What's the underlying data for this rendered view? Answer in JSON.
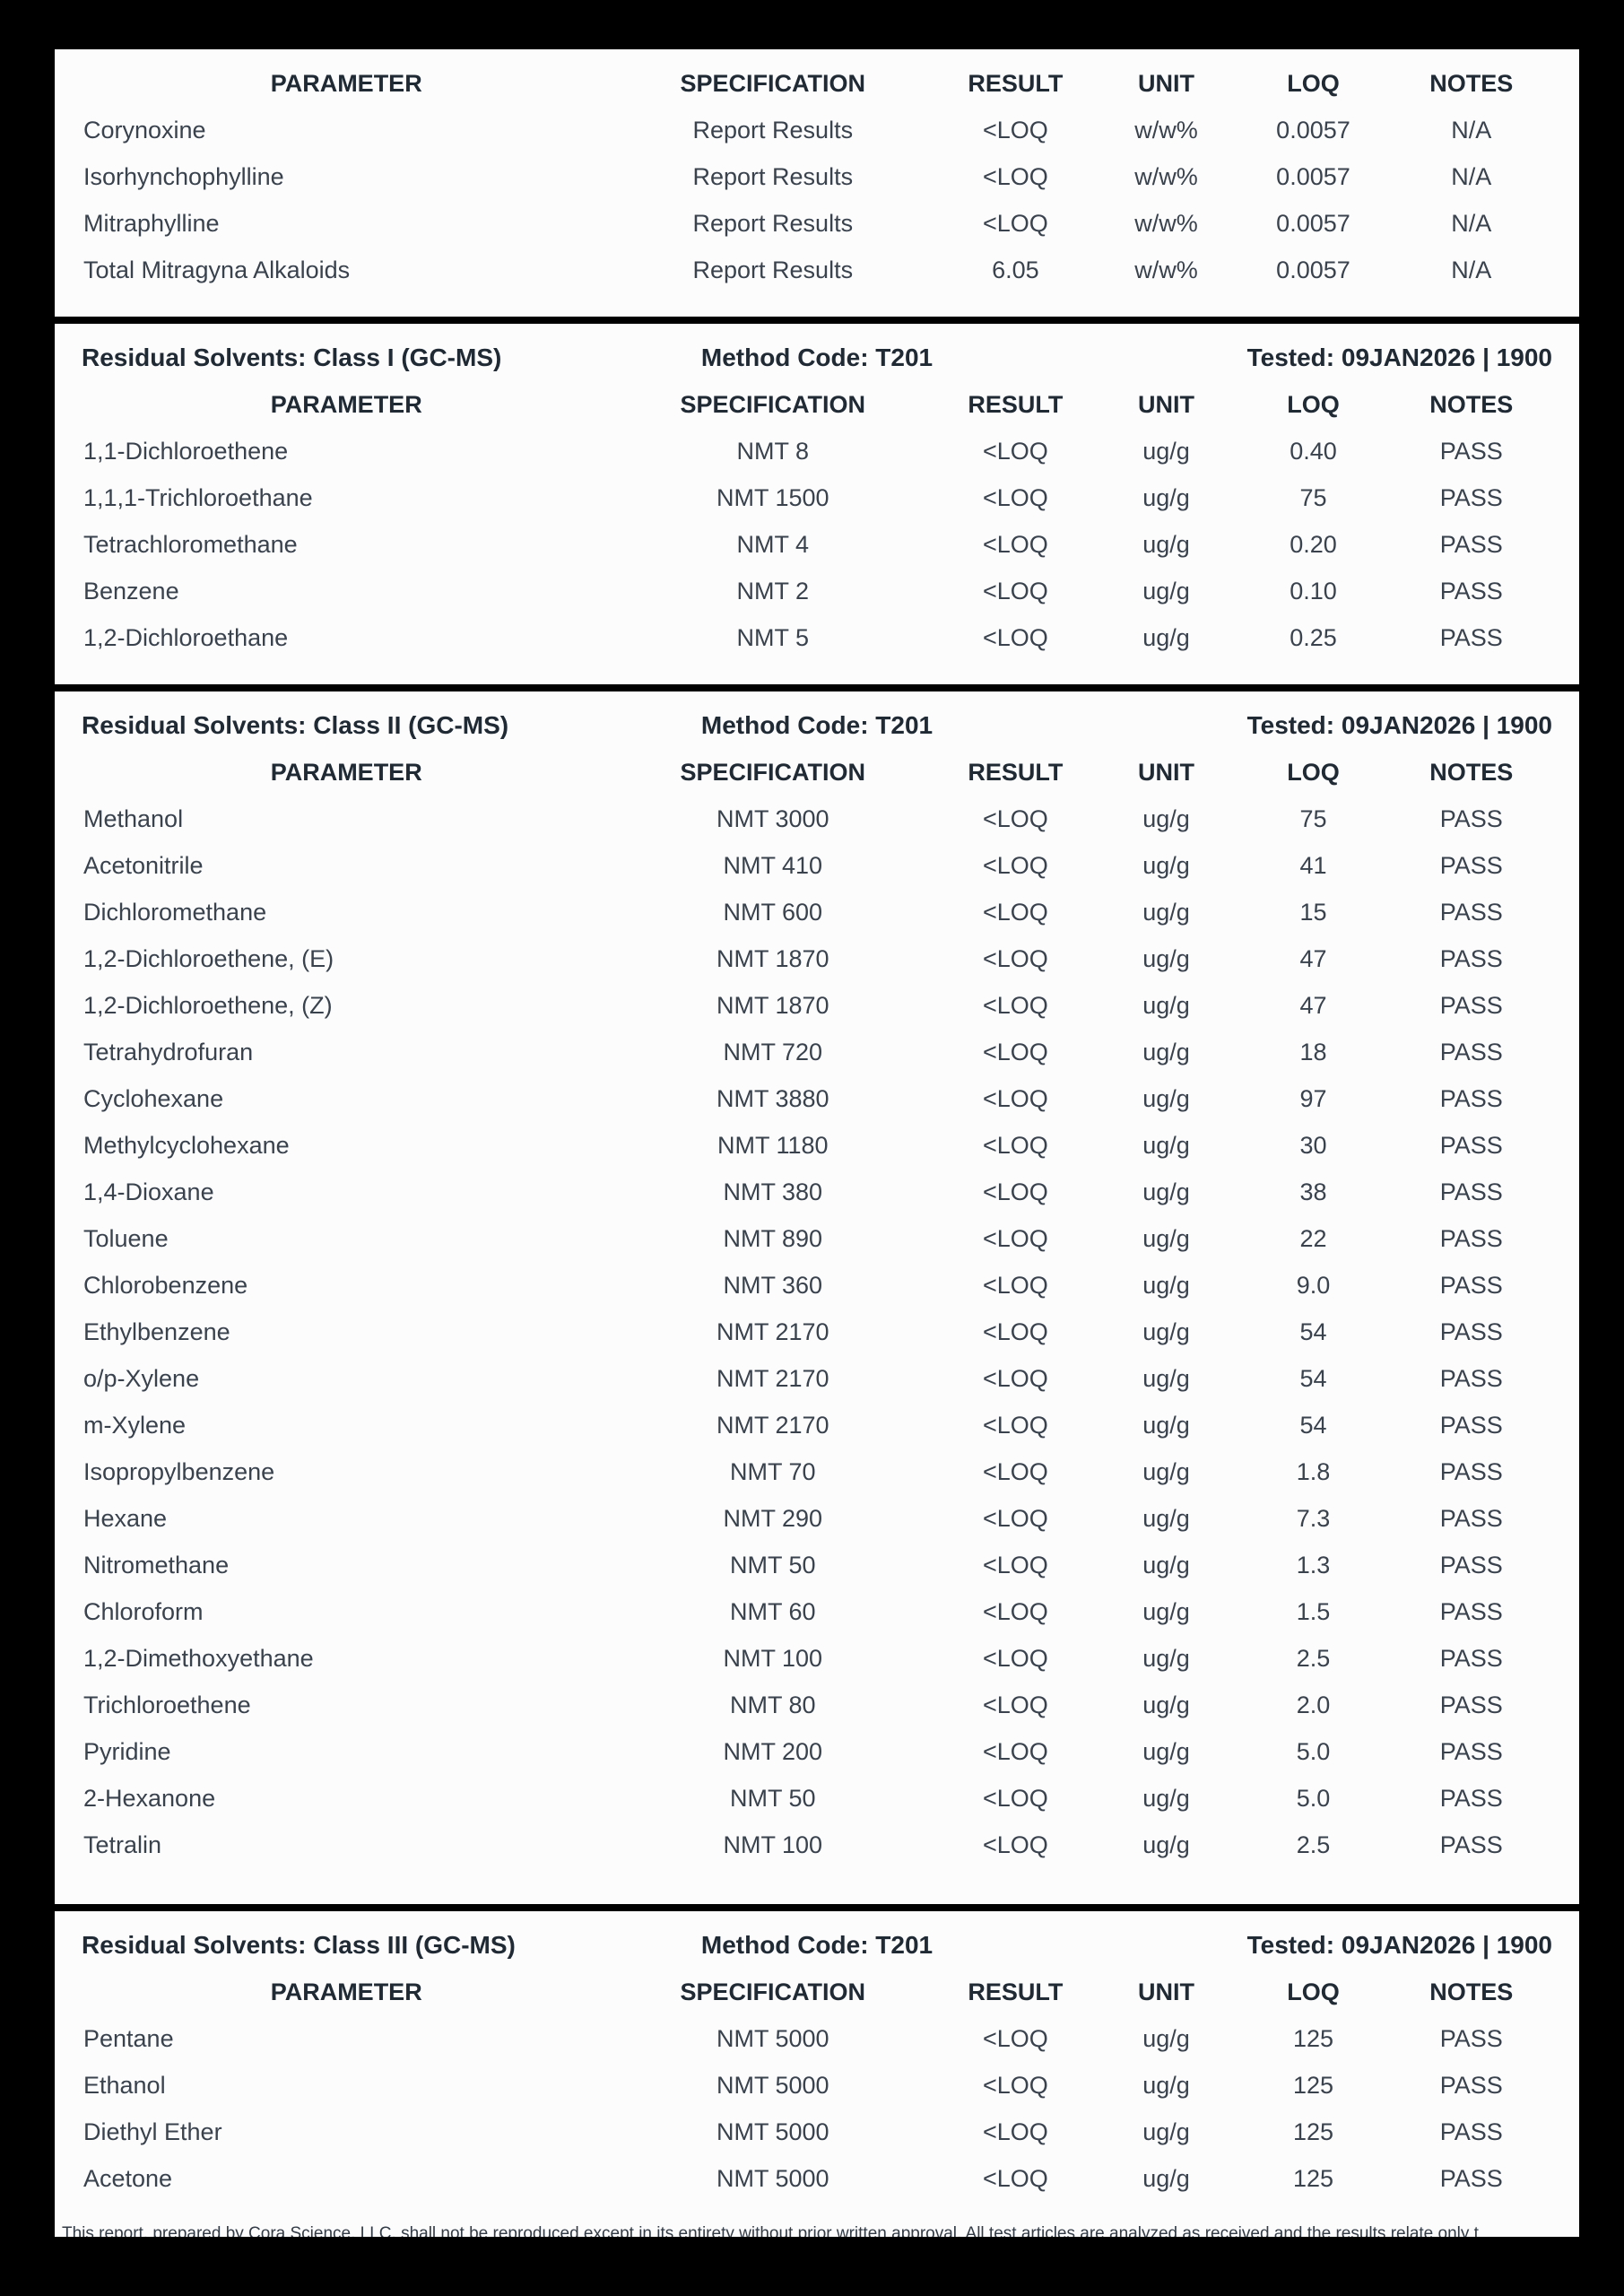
{
  "colors": {
    "background": "#000000",
    "card": "#fcfcfd",
    "body_text": "#39424d",
    "heading_text": "#202a35"
  },
  "report": {
    "columns": [
      "PARAMETER",
      "SPECIFICATION",
      "RESULT",
      "UNIT",
      "LOQ",
      "NOTES"
    ],
    "sections": [
      {
        "title": "",
        "method": "",
        "tested": "",
        "has_footer": false,
        "rows": [
          [
            "Corynoxine",
            "Report Results",
            "<LOQ",
            "w/w%",
            "0.0057",
            "N/A"
          ],
          [
            "Isorhynchophylline",
            "Report Results",
            "<LOQ",
            "w/w%",
            "0.0057",
            "N/A"
          ],
          [
            "Mitraphylline",
            "Report Results",
            "<LOQ",
            "w/w%",
            "0.0057",
            "N/A"
          ],
          [
            "Total Mitragyna Alkaloids",
            "Report Results",
            "6.05",
            "w/w%",
            "0.0057",
            "N/A"
          ]
        ]
      },
      {
        "title": "Residual Solvents: Class I (GC-MS)",
        "method": "Method Code: T201",
        "tested": "Tested: 09JAN2026 | 1900",
        "has_footer": false,
        "rows": [
          [
            "1,1-Dichloroethene",
            "NMT 8",
            "<LOQ",
            "ug/g",
            "0.40",
            "PASS"
          ],
          [
            "1,1,1-Trichloroethane",
            "NMT 1500",
            "<LOQ",
            "ug/g",
            "75",
            "PASS"
          ],
          [
            "Tetrachloromethane",
            "NMT 4",
            "<LOQ",
            "ug/g",
            "0.20",
            "PASS"
          ],
          [
            "Benzene",
            "NMT 2",
            "<LOQ",
            "ug/g",
            "0.10",
            "PASS"
          ],
          [
            "1,2-Dichloroethane",
            "NMT 5",
            "<LOQ",
            "ug/g",
            "0.25",
            "PASS"
          ]
        ]
      },
      {
        "title": "Residual Solvents: Class II (GC-MS)",
        "method": "Method Code: T201",
        "tested": "Tested: 09JAN2026 | 1900",
        "has_footer": false,
        "rows": [
          [
            "Methanol",
            "NMT 3000",
            "<LOQ",
            "ug/g",
            "75",
            "PASS"
          ],
          [
            "Acetonitrile",
            "NMT 410",
            "<LOQ",
            "ug/g",
            "41",
            "PASS"
          ],
          [
            "Dichloromethane",
            "NMT 600",
            "<LOQ",
            "ug/g",
            "15",
            "PASS"
          ],
          [
            "1,2-Dichloroethene, (E)",
            "NMT 1870",
            "<LOQ",
            "ug/g",
            "47",
            "PASS"
          ],
          [
            "1,2-Dichloroethene, (Z)",
            "NMT 1870",
            "<LOQ",
            "ug/g",
            "47",
            "PASS"
          ],
          [
            "Tetrahydrofuran",
            "NMT 720",
            "<LOQ",
            "ug/g",
            "18",
            "PASS"
          ],
          [
            "Cyclohexane",
            "NMT 3880",
            "<LOQ",
            "ug/g",
            "97",
            "PASS"
          ],
          [
            "Methylcyclohexane",
            "NMT 1180",
            "<LOQ",
            "ug/g",
            "30",
            "PASS"
          ],
          [
            "1,4-Dioxane",
            "NMT 380",
            "<LOQ",
            "ug/g",
            "38",
            "PASS"
          ],
          [
            "Toluene",
            "NMT 890",
            "<LOQ",
            "ug/g",
            "22",
            "PASS"
          ],
          [
            "Chlorobenzene",
            "NMT 360",
            "<LOQ",
            "ug/g",
            "9.0",
            "PASS"
          ],
          [
            "Ethylbenzene",
            "NMT 2170",
            "<LOQ",
            "ug/g",
            "54",
            "PASS"
          ],
          [
            "o/p-Xylene",
            "NMT 2170",
            "<LOQ",
            "ug/g",
            "54",
            "PASS"
          ],
          [
            "m-Xylene",
            "NMT 2170",
            "<LOQ",
            "ug/g",
            "54",
            "PASS"
          ],
          [
            "Isopropylbenzene",
            "NMT 70",
            "<LOQ",
            "ug/g",
            "1.8",
            "PASS"
          ],
          [
            "Hexane",
            "NMT 290",
            "<LOQ",
            "ug/g",
            "7.3",
            "PASS"
          ],
          [
            "Nitromethane",
            "NMT 50",
            "<LOQ",
            "ug/g",
            "1.3",
            "PASS"
          ],
          [
            "Chloroform",
            "NMT 60",
            "<LOQ",
            "ug/g",
            "1.5",
            "PASS"
          ],
          [
            "1,2-Dimethoxyethane",
            "NMT 100",
            "<LOQ",
            "ug/g",
            "2.5",
            "PASS"
          ],
          [
            "Trichloroethene",
            "NMT 80",
            "<LOQ",
            "ug/g",
            "2.0",
            "PASS"
          ],
          [
            "Pyridine",
            "NMT 200",
            "<LOQ",
            "ug/g",
            "5.0",
            "PASS"
          ],
          [
            "2-Hexanone",
            "NMT 50",
            "<LOQ",
            "ug/g",
            "5.0",
            "PASS"
          ],
          [
            "Tetralin",
            "NMT 100",
            "<LOQ",
            "ug/g",
            "2.5",
            "PASS"
          ]
        ]
      },
      {
        "title": "Residual Solvents: Class III (GC-MS)",
        "method": "Method Code: T201",
        "tested": "Tested: 09JAN2026 | 1900",
        "has_footer": true,
        "rows": [
          [
            "Pentane",
            "NMT 5000",
            "<LOQ",
            "ug/g",
            "125",
            "PASS"
          ],
          [
            "Ethanol",
            "NMT 5000",
            "<LOQ",
            "ug/g",
            "125",
            "PASS"
          ],
          [
            "Diethyl Ether",
            "NMT 5000",
            "<LOQ",
            "ug/g",
            "125",
            "PASS"
          ],
          [
            "Acetone",
            "NMT 5000",
            "<LOQ",
            "ug/g",
            "125",
            "PASS"
          ]
        ]
      }
    ],
    "footer_text": "This report, prepared by Cora Science, LLC, shall not be reproduced except in its entirety without prior written approval. All test articles are analyzed as received and the results relate only t"
  }
}
